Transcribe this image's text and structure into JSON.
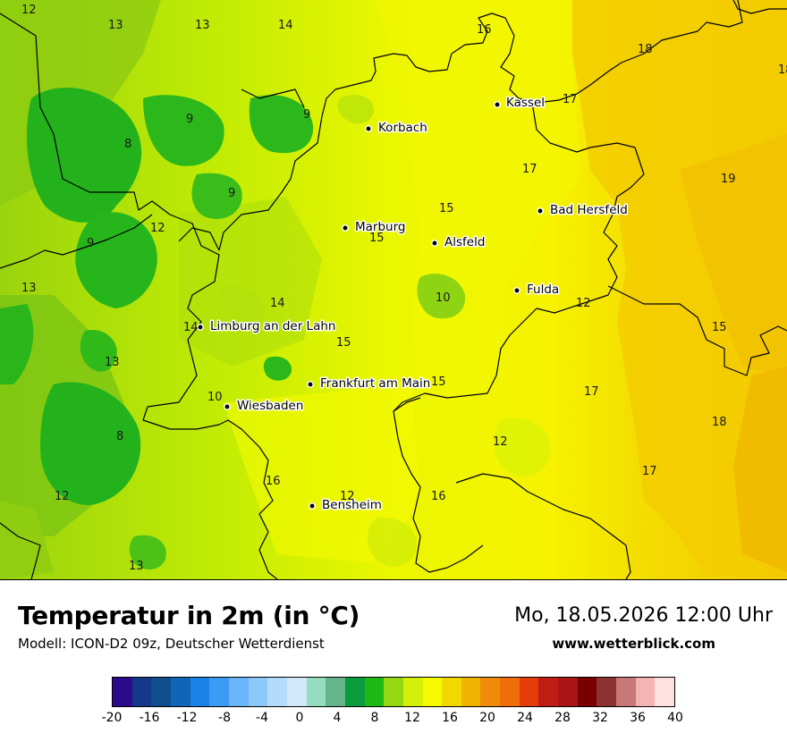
{
  "map": {
    "cities": [
      {
        "name": "Kassel"
      },
      {
        "name": "Korbach"
      },
      {
        "name": "Bad Hersfeld"
      },
      {
        "name": "Marburg"
      },
      {
        "name": "Alsfeld"
      },
      {
        "name": "Fulda"
      },
      {
        "name": "Limburg an der Lahn"
      },
      {
        "name": "Frankfurt am Main"
      },
      {
        "name": "Wiesbaden"
      },
      {
        "name": "Bensheim"
      }
    ],
    "values": [
      "12",
      "13",
      "13",
      "14",
      "16",
      "18",
      "18",
      "17",
      "9",
      "9",
      "8",
      "17",
      "9",
      "19",
      "12",
      "15",
      "9",
      "15",
      "13",
      "10",
      "14",
      "12",
      "14",
      "15",
      "15",
      "13",
      "17",
      "10",
      "15",
      "18",
      "12",
      "8",
      "17",
      "16",
      "12",
      "16",
      "12",
      "13"
    ]
  },
  "header": {
    "title": "Temperatur in 2m (in °C)",
    "model": "Modell: ICON-D2 09z, Deutscher Wetterdienst",
    "datetime": "Mo, 18.05.2026 12:00 Uhr",
    "website": "www.wetterblick.com"
  },
  "colorscale": {
    "colors": [
      "#2d0a8c",
      "#14398a",
      "#0f4d8c",
      "#1264b8",
      "#1a82e6",
      "#3c9bf5",
      "#69b4fa",
      "#8cc8fa",
      "#b4dcfa",
      "#d2e8fa",
      "#96dcbe",
      "#64b48c",
      "#0a9b3c",
      "#1eb914",
      "#96d714",
      "#d2f00a",
      "#f5fa00",
      "#f0d800",
      "#f0b400",
      "#f08c0a",
      "#f06e0a",
      "#e63c0a",
      "#be1e14",
      "#aa1414",
      "#780000",
      "#8c3232",
      "#c87878",
      "#f5b4b4",
      "#ffe1e1"
    ],
    "ticks": [
      "-20",
      "-16",
      "-12",
      "-8",
      "-4",
      "0",
      "4",
      "8",
      "12",
      "16",
      "20",
      "24",
      "28",
      "32",
      "36",
      "40"
    ]
  }
}
